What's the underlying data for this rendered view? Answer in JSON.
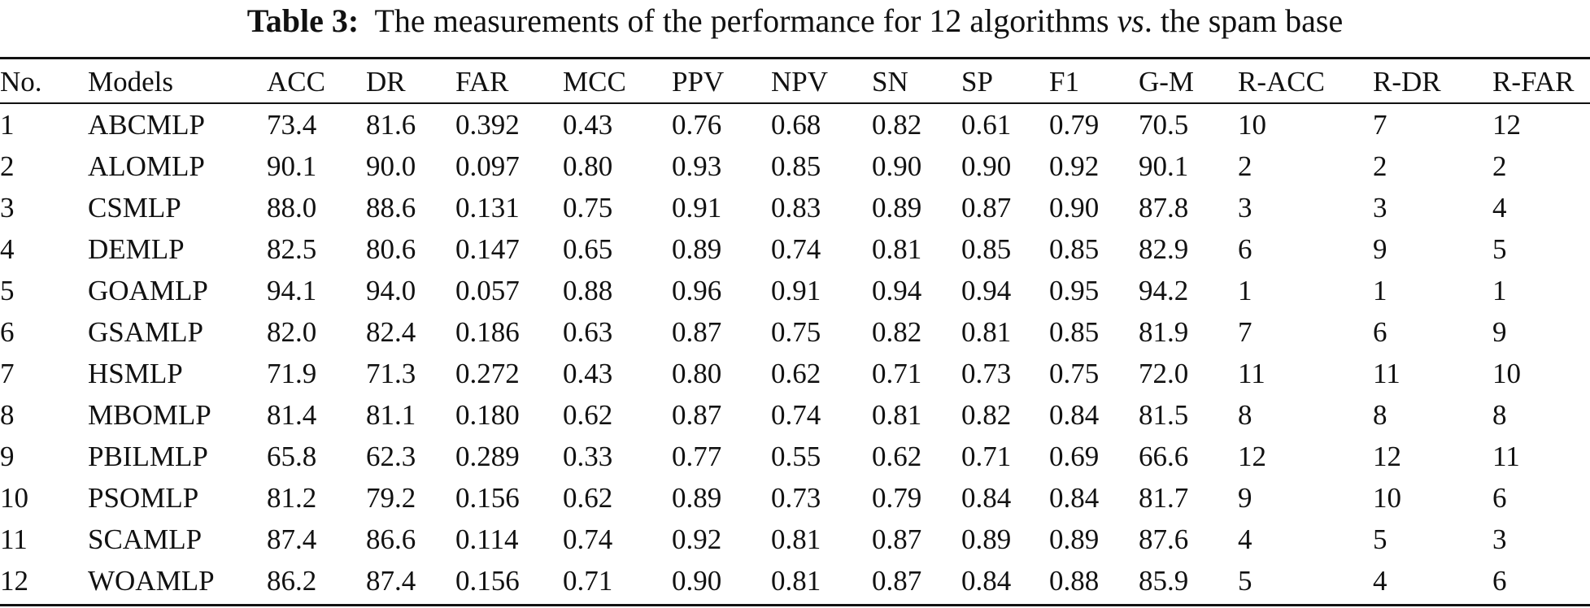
{
  "caption": {
    "label": "Table 3:",
    "text_before": "The measurements of the performance for 12 algorithms",
    "italic": "vs",
    "text_after": ". the spam base"
  },
  "table": {
    "columns": [
      "No.",
      "Models",
      "ACC",
      "DR",
      "FAR",
      "MCC",
      "PPV",
      "NPV",
      "SN",
      "SP",
      "F1",
      "G-M",
      "R-ACC",
      "R-DR",
      "R-FAR"
    ],
    "rows": [
      [
        "1",
        "ABCMLP",
        "73.4",
        "81.6",
        "0.392",
        "0.43",
        "0.76",
        "0.68",
        "0.82",
        "0.61",
        "0.79",
        "70.5",
        "10",
        "7",
        "12"
      ],
      [
        "2",
        "ALOMLP",
        "90.1",
        "90.0",
        "0.097",
        "0.80",
        "0.93",
        "0.85",
        "0.90",
        "0.90",
        "0.92",
        "90.1",
        "2",
        "2",
        "2"
      ],
      [
        "3",
        "CSMLP",
        "88.0",
        "88.6",
        "0.131",
        "0.75",
        "0.91",
        "0.83",
        "0.89",
        "0.87",
        "0.90",
        "87.8",
        "3",
        "3",
        "4"
      ],
      [
        "4",
        "DEMLP",
        "82.5",
        "80.6",
        "0.147",
        "0.65",
        "0.89",
        "0.74",
        "0.81",
        "0.85",
        "0.85",
        "82.9",
        "6",
        "9",
        "5"
      ],
      [
        "5",
        "GOAMLP",
        "94.1",
        "94.0",
        "0.057",
        "0.88",
        "0.96",
        "0.91",
        "0.94",
        "0.94",
        "0.95",
        "94.2",
        "1",
        "1",
        "1"
      ],
      [
        "6",
        "GSAMLP",
        "82.0",
        "82.4",
        "0.186",
        "0.63",
        "0.87",
        "0.75",
        "0.82",
        "0.81",
        "0.85",
        "81.9",
        "7",
        "6",
        "9"
      ],
      [
        "7",
        "HSMLP",
        "71.9",
        "71.3",
        "0.272",
        "0.43",
        "0.80",
        "0.62",
        "0.71",
        "0.73",
        "0.75",
        "72.0",
        "11",
        "11",
        "10"
      ],
      [
        "8",
        "MBOMLP",
        "81.4",
        "81.1",
        "0.180",
        "0.62",
        "0.87",
        "0.74",
        "0.81",
        "0.82",
        "0.84",
        "81.5",
        "8",
        "8",
        "8"
      ],
      [
        "9",
        "PBILMLP",
        "65.8",
        "62.3",
        "0.289",
        "0.33",
        "0.77",
        "0.55",
        "0.62",
        "0.71",
        "0.69",
        "66.6",
        "12",
        "12",
        "11"
      ],
      [
        "10",
        "PSOMLP",
        "81.2",
        "79.2",
        "0.156",
        "0.62",
        "0.89",
        "0.73",
        "0.79",
        "0.84",
        "0.84",
        "81.7",
        "9",
        "10",
        "6"
      ],
      [
        "11",
        "SCAMLP",
        "87.4",
        "86.6",
        "0.114",
        "0.74",
        "0.92",
        "0.81",
        "0.87",
        "0.89",
        "0.89",
        "87.6",
        "4",
        "5",
        "3"
      ],
      [
        "12",
        "WOAMLP",
        "86.2",
        "87.4",
        "0.156",
        "0.71",
        "0.90",
        "0.81",
        "0.87",
        "0.84",
        "0.88",
        "85.9",
        "5",
        "4",
        "6"
      ]
    ]
  }
}
